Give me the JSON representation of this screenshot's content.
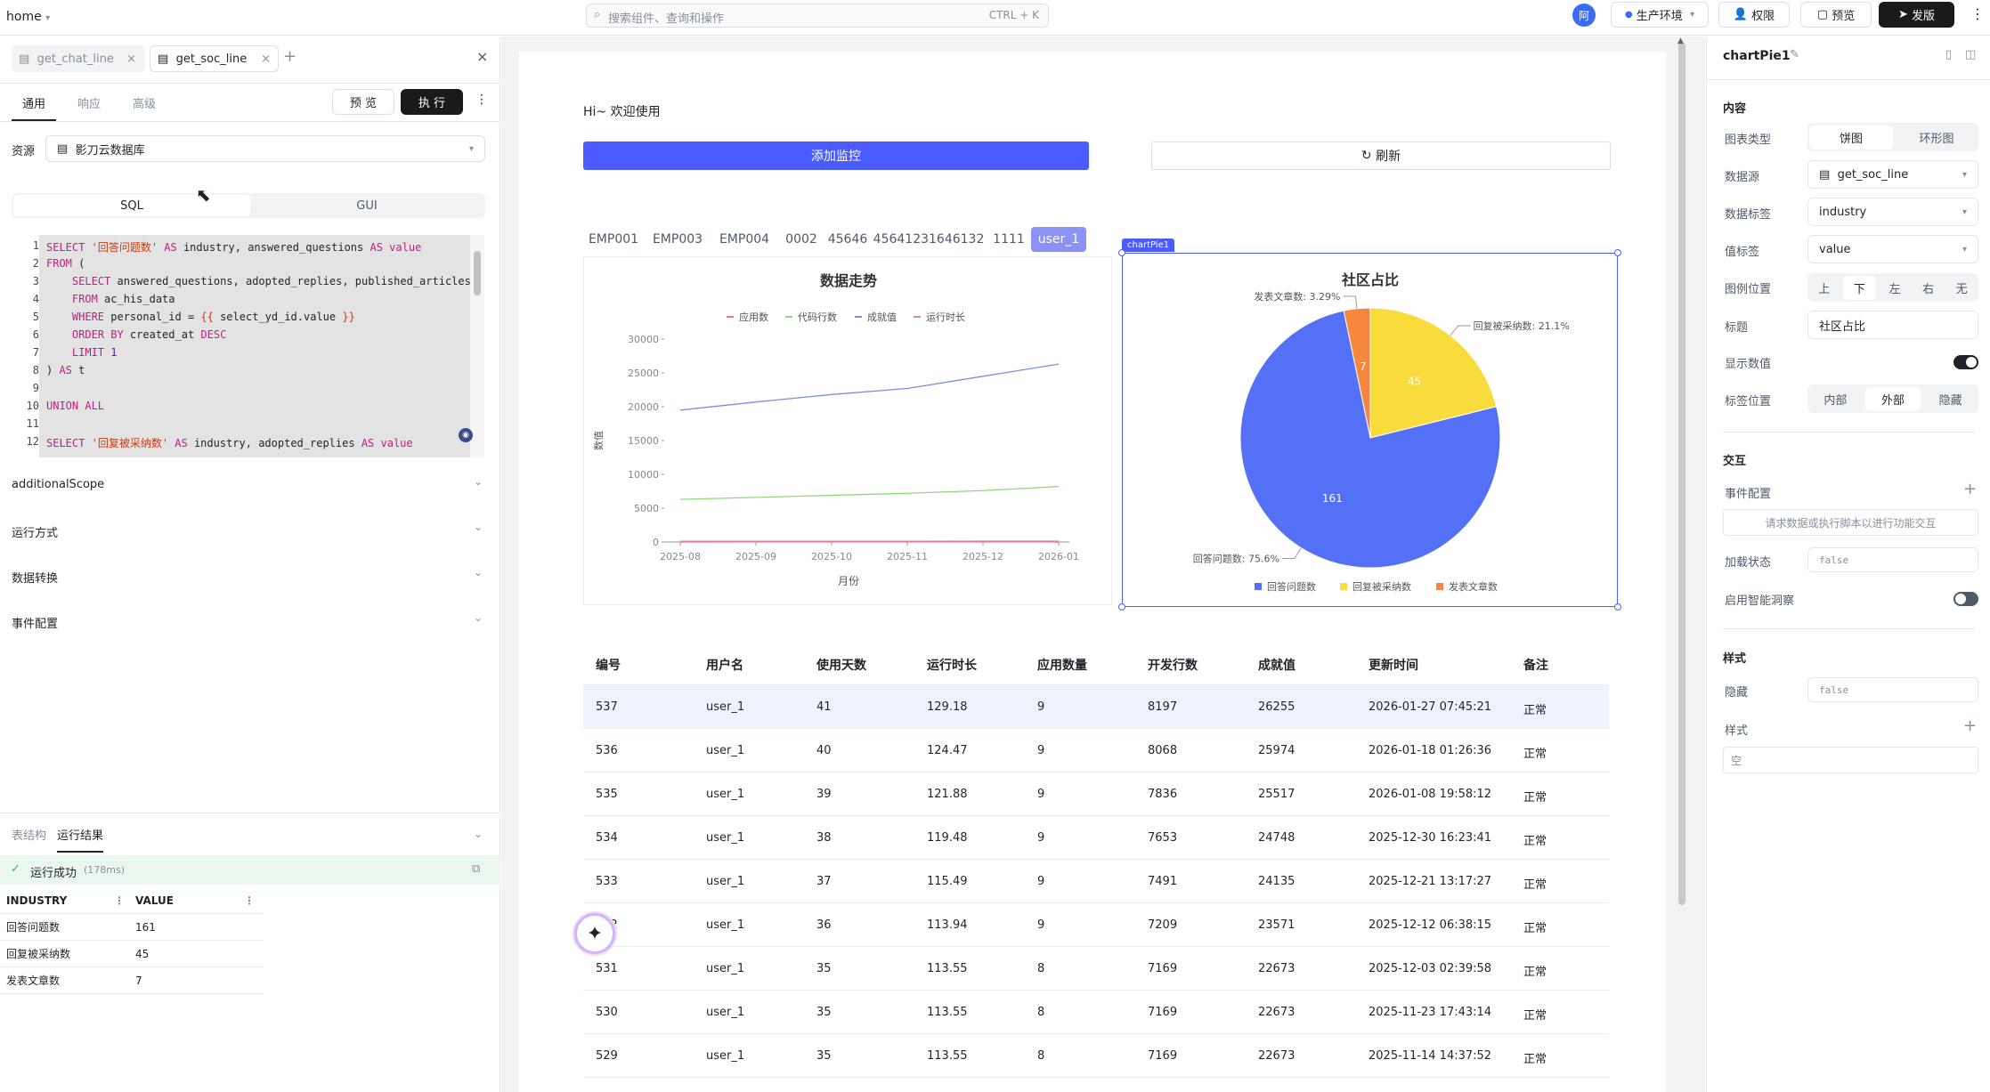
{
  "topbar": {
    "home": "home",
    "search_placeholder": "搜索组件、查询和操作",
    "shortcut": "CTRL + K",
    "avatar": "阿",
    "env": "生产环境",
    "perm": "权限",
    "preview": "预览",
    "publish": "发版"
  },
  "left": {
    "tabs": [
      "get_chat_line",
      "get_soc_line"
    ],
    "subtabs": [
      "通用",
      "响应",
      "高级"
    ],
    "preview_btn": "预 览",
    "run_btn": "执 行",
    "resource_label": "资源",
    "resource_value": "影刀云数据库",
    "mode_tabs": [
      "SQL",
      "GUI"
    ],
    "code_lines": [
      "1",
      "2",
      "3",
      "4",
      "5",
      "6",
      "7",
      "8",
      "9",
      "10",
      "11",
      "12"
    ],
    "sections": [
      "additionalScope",
      "运行方式",
      "数据转换",
      "事件配置"
    ],
    "bottom_tabs": [
      "表结构",
      "运行结果"
    ],
    "success": "运行成功",
    "elapsed": "(178ms)",
    "result_header": [
      "INDUSTRY",
      "VALUE"
    ],
    "result_rows": [
      [
        "回答问题数",
        "161"
      ],
      [
        "回复被采纳数",
        "45"
      ],
      [
        "发表文章数",
        "7"
      ]
    ]
  },
  "canvas": {
    "greeting": "Hi~ 欢迎使用",
    "add_btn": "添加监控",
    "refresh_btn": "刷新",
    "filters": [
      "EMP001",
      "EMP003",
      "EMP004",
      "0002",
      "45646",
      "45641231646132",
      "1111",
      "user_1"
    ],
    "selected_filter": "user_1",
    "selection_label": "chartPie1",
    "table": {
      "headers": [
        "编号",
        "用户名",
        "使用天数",
        "运行时长",
        "应用数量",
        "开发行数",
        "成就值",
        "更新时间",
        "备注"
      ],
      "rows": [
        [
          "537",
          "user_1",
          "41",
          "129.18",
          "9",
          "8197",
          "26255",
          "2026-01-27 07:45:21",
          "正常"
        ],
        [
          "536",
          "user_1",
          "40",
          "124.47",
          "9",
          "8068",
          "25974",
          "2026-01-18 01:26:36",
          "正常"
        ],
        [
          "535",
          "user_1",
          "39",
          "121.88",
          "9",
          "7836",
          "25517",
          "2026-01-08 19:58:12",
          "正常"
        ],
        [
          "534",
          "user_1",
          "38",
          "119.48",
          "9",
          "7653",
          "24748",
          "2025-12-30 16:23:41",
          "正常"
        ],
        [
          "533",
          "user_1",
          "37",
          "115.49",
          "9",
          "7491",
          "24135",
          "2025-12-21 13:17:27",
          "正常"
        ],
        [
          "532",
          "user_1",
          "36",
          "113.94",
          "9",
          "7209",
          "23571",
          "2025-12-12 06:38:15",
          "正常"
        ],
        [
          "531",
          "user_1",
          "35",
          "113.55",
          "8",
          "7169",
          "22673",
          "2025-12-03 02:39:58",
          "正常"
        ],
        [
          "530",
          "user_1",
          "35",
          "113.55",
          "8",
          "7169",
          "22673",
          "2025-11-23 17:43:14",
          "正常"
        ],
        [
          "529",
          "user_1",
          "35",
          "113.55",
          "8",
          "7169",
          "22673",
          "2025-11-14 14:37:52",
          "正常"
        ]
      ]
    }
  },
  "chart_data": [
    {
      "type": "line",
      "title": "数据走势",
      "xlabel": "月份",
      "ylabel": "数值",
      "x": [
        "2025-08",
        "2025-09",
        "2025-10",
        "2025-11",
        "2025-12",
        "2026-01"
      ],
      "yticks": [
        "30000",
        "25000",
        "20000",
        "15000",
        "10000",
        "5000",
        "0"
      ],
      "ylim": [
        0,
        30000
      ],
      "series": [
        {
          "name": "应用数",
          "color": "#e8739b",
          "values": [
            9,
            9,
            9,
            9,
            9,
            9
          ]
        },
        {
          "name": "代码行数",
          "color": "#8fd97d",
          "values": [
            6300,
            6600,
            6900,
            7200,
            7600,
            8200
          ]
        },
        {
          "name": "成就值",
          "color": "#7b8fd6",
          "values": [
            19500,
            20700,
            21800,
            22700,
            24500,
            26300
          ]
        },
        {
          "name": "运行时长",
          "color": "#e080b0",
          "values": [
            110,
            113,
            114,
            116,
            121,
            129
          ]
        }
      ]
    },
    {
      "type": "pie",
      "title": "社区占比",
      "slices": [
        {
          "name": "回答问题数",
          "value": 161,
          "color": "#5470f6",
          "label": "回答问题数: 75.6%"
        },
        {
          "name": "回复被采纳数",
          "value": 45,
          "color": "#fadb3c",
          "label": "回复被采纳数: 21.1%"
        },
        {
          "name": "发表文章数",
          "value": 7,
          "color": "#f6873d",
          "label": "发表文章数: 3.29%"
        }
      ]
    }
  ],
  "right": {
    "title": "chartPie1",
    "content": "内容",
    "chart_type_label": "图表类型",
    "chart_types": [
      "饼图",
      "环形图"
    ],
    "datasource_label": "数据源",
    "datasource": "get_soc_line",
    "datalabel_label": "数据标签",
    "datalabel": "industry",
    "valuelabel_label": "值标签",
    "valuelabel": "value",
    "legend_label": "图例位置",
    "legend_opts": [
      "上",
      "下",
      "左",
      "右",
      "无"
    ],
    "title_label": "标题",
    "title_value": "社区占比",
    "show_value": "显示数值",
    "labelpos_label": "标签位置",
    "labelpos_opts": [
      "内部",
      "外部",
      "隐藏"
    ],
    "interaction": "交互",
    "event_cfg": "事件配置",
    "event_hint": "请求数据或执行脚本以进行功能交互",
    "loading": "加载状态",
    "loading_val": "false",
    "smart": "启用智能洞察",
    "style": "样式",
    "hidden": "隐藏",
    "hidden_val": "false",
    "style2": "样式",
    "empty": "空"
  }
}
